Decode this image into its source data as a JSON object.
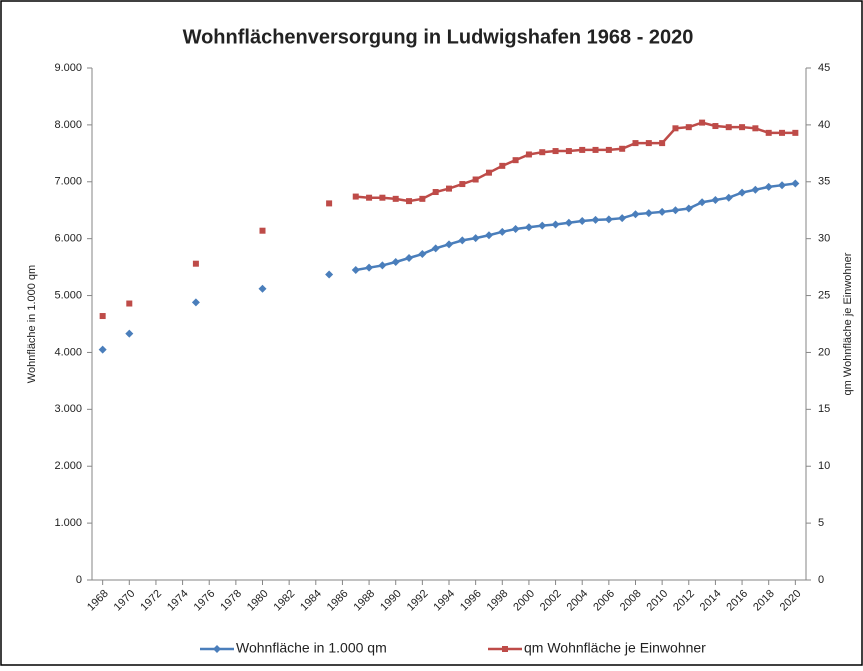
{
  "chart_data": {
    "type": "line",
    "title": "Wohnflächenversorgung in Ludwigshafen 1968 - 2020",
    "ylabel": "Wohnfläche in 1.000 qm",
    "y2label": "qm Wohnfläche je Einwohner",
    "x": [
      1968,
      1969,
      1970,
      1971,
      1972,
      1973,
      1974,
      1975,
      1976,
      1977,
      1978,
      1979,
      1980,
      1981,
      1982,
      1983,
      1984,
      1985,
      1986,
      1987,
      1988,
      1989,
      1990,
      1991,
      1992,
      1993,
      1994,
      1995,
      1996,
      1997,
      1998,
      1999,
      2000,
      2001,
      2002,
      2003,
      2004,
      2005,
      2006,
      2007,
      2008,
      2009,
      2010,
      2011,
      2012,
      2013,
      2014,
      2015,
      2016,
      2017,
      2018,
      2019,
      2020
    ],
    "xlim": [
      1967.2,
      2020.8
    ],
    "xticks": [
      1968,
      1970,
      1972,
      1974,
      1976,
      1978,
      1980,
      1982,
      1984,
      1986,
      1988,
      1990,
      1992,
      1994,
      1996,
      1998,
      2000,
      2002,
      2004,
      2006,
      2008,
      2010,
      2012,
      2014,
      2016,
      2018,
      2020
    ],
    "ylim": [
      0,
      9000
    ],
    "yticks": [
      0,
      {
        "value": 1000,
        "label": "1.000"
      },
      {
        "value": 2000,
        "label": "2.000"
      },
      {
        "value": 3000,
        "label": "3.000"
      },
      {
        "value": 4000,
        "label": "4.000"
      },
      {
        "value": 5000,
        "label": "5.000"
      },
      {
        "value": 6000,
        "label": "6.000"
      },
      {
        "value": 7000,
        "label": "7.000"
      },
      {
        "value": 8000,
        "label": "8.000"
      },
      {
        "value": 9000,
        "label": "9.000"
      }
    ],
    "y2lim": [
      0,
      45
    ],
    "y2ticks": [
      0,
      5,
      10,
      15,
      20,
      25,
      30,
      35,
      40,
      45
    ],
    "legend": "bottom",
    "series": [
      {
        "name": "Wohnfläche in 1.000 qm",
        "color": "#4a7ebb",
        "marker": "diamond",
        "values": [
          4050,
          null,
          4330,
          null,
          null,
          null,
          null,
          4880,
          null,
          null,
          null,
          null,
          5120,
          null,
          null,
          null,
          null,
          5370,
          null,
          5450,
          5490,
          5530,
          5590,
          5660,
          5730,
          5830,
          5900,
          5970,
          6010,
          6060,
          6120,
          6170,
          6200,
          6230,
          6250,
          6280,
          6310,
          6330,
          6340,
          6360,
          6430,
          6450,
          6470,
          6500,
          6530,
          6640,
          6680,
          6720,
          6810,
          6860,
          6910,
          6940,
          6970
        ]
      },
      {
        "name": "qm Wohnfläche je Einwohner",
        "color": "#be4b48",
        "marker": "square",
        "axis": "y2",
        "values": [
          23.2,
          null,
          24.3,
          null,
          null,
          null,
          null,
          27.8,
          null,
          null,
          null,
          null,
          30.7,
          null,
          null,
          null,
          null,
          33.1,
          null,
          33.7,
          33.6,
          33.6,
          33.5,
          33.3,
          33.5,
          34.1,
          34.4,
          34.8,
          35.2,
          35.8,
          36.4,
          36.9,
          37.4,
          37.6,
          37.7,
          37.7,
          37.8,
          37.8,
          37.8,
          37.9,
          38.4,
          38.4,
          38.4,
          39.7,
          39.8,
          40.2,
          39.9,
          39.8,
          39.8,
          39.7,
          39.3,
          39.3,
          39.3
        ]
      }
    ]
  }
}
